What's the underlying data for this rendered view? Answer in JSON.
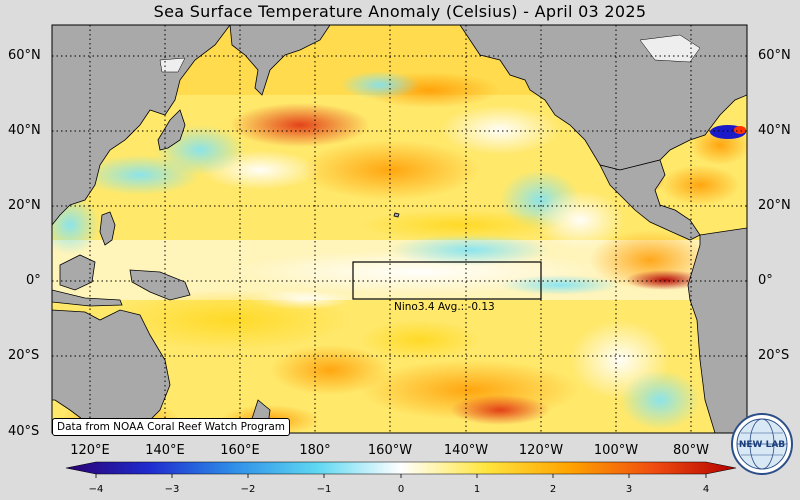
{
  "title": "Sea Surface Temperature Anomaly (Celsius) - April 03 2025",
  "latitude_labels": [
    "60°N",
    "40°N",
    "20°N",
    "0°",
    "20°S",
    "40°S"
  ],
  "longitude_labels": [
    "120°E",
    "140°E",
    "160°E",
    "180°",
    "160°W",
    "140°W",
    "120°W",
    "100°W",
    "80°W"
  ],
  "colorbar": {
    "ticks": [
      "−4",
      "−3",
      "−2",
      "−1",
      "0",
      "1",
      "2",
      "3",
      "4"
    ],
    "colors": [
      "#2b0070",
      "#1f2ccf",
      "#2f8fe8",
      "#5fd8f2",
      "#ffffff",
      "#ffe640",
      "#ffa400",
      "#f04e10",
      "#b30000"
    ]
  },
  "nino_box": {
    "label": "Nino3.4 Avg.: -0.13",
    "lon_range": [
      "170°W",
      "120°W"
    ],
    "lat_range": [
      "5°S",
      "5°N"
    ]
  },
  "source": "Data from NOAA Coral Reef Watch Program",
  "logo": {
    "text": "NEW LAB",
    "icon": "globe-logo-icon"
  },
  "land_color": "#a9a9a9",
  "ocean_neutral": "#ffffff"
}
